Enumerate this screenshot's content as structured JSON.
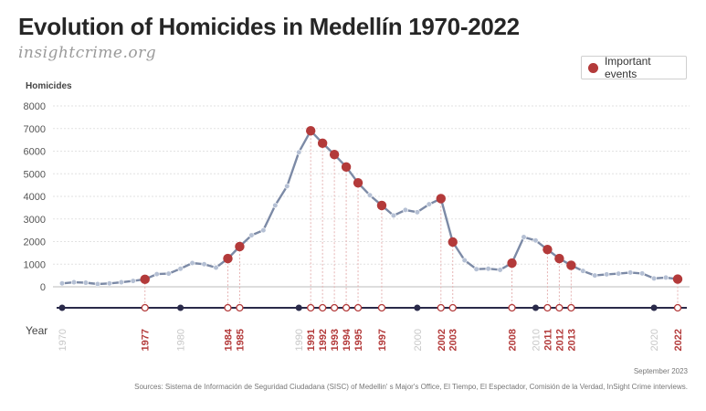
{
  "header": {
    "title": "Evolution of Homicides in Medellín 1970-2022",
    "subtitle": "insightcrime.org"
  },
  "legend": {
    "label": "Important events",
    "color": "#b33a3a"
  },
  "footer": {
    "date": "September 2023",
    "sources": "Sources: Sistema de Información de Seguridad Ciudadana (SISC) of Medellin' s Major's Office, El Tiempo, El Espectador, Comisión de la Verdad, InSight Crime interviews."
  },
  "chart_data": {
    "type": "line",
    "title": "Evolution of Homicides in Medellín 1970-2022",
    "ylabel": "Homicides",
    "xlabel": "Year",
    "ylim": [
      0,
      8000
    ],
    "yticks": [
      0,
      1000,
      2000,
      3000,
      4000,
      5000,
      6000,
      7000,
      8000
    ],
    "x": [
      1970,
      1971,
      1972,
      1973,
      1974,
      1975,
      1976,
      1977,
      1978,
      1979,
      1980,
      1981,
      1982,
      1983,
      1984,
      1985,
      1986,
      1987,
      1988,
      1989,
      1990,
      1991,
      1992,
      1993,
      1994,
      1995,
      1996,
      1997,
      1998,
      1999,
      2000,
      2001,
      2002,
      2003,
      2004,
      2005,
      2006,
      2007,
      2008,
      2009,
      2010,
      2011,
      2012,
      2013,
      2014,
      2015,
      2016,
      2017,
      2018,
      2019,
      2020,
      2021,
      2022
    ],
    "series": [
      {
        "name": "Homicides",
        "values": [
          150,
          200,
          180,
          120,
          150,
          200,
          260,
          330,
          560,
          580,
          800,
          1050,
          1000,
          850,
          1250,
          1780,
          2280,
          2500,
          3600,
          4450,
          5950,
          6900,
          6350,
          5850,
          5300,
          4600,
          4050,
          3600,
          3150,
          3400,
          3300,
          3650,
          3900,
          1980,
          1170,
          780,
          800,
          750,
          1050,
          2200,
          2050,
          1650,
          1250,
          950,
          700,
          500,
          550,
          580,
          630,
          590,
          370,
          410,
          340
        ]
      }
    ],
    "important_events": [
      1977,
      1984,
      1985,
      1991,
      1992,
      1993,
      1994,
      1995,
      1997,
      2002,
      2003,
      2008,
      2011,
      2012,
      2013,
      2022
    ],
    "reference_years": [
      1970,
      1980,
      1990,
      2000,
      2010,
      2020
    ],
    "colors": {
      "line": "#7c8aa6",
      "event": "#b33a3a",
      "reference": "#2a2a4a",
      "muted_year": "#c8c8c8"
    }
  }
}
